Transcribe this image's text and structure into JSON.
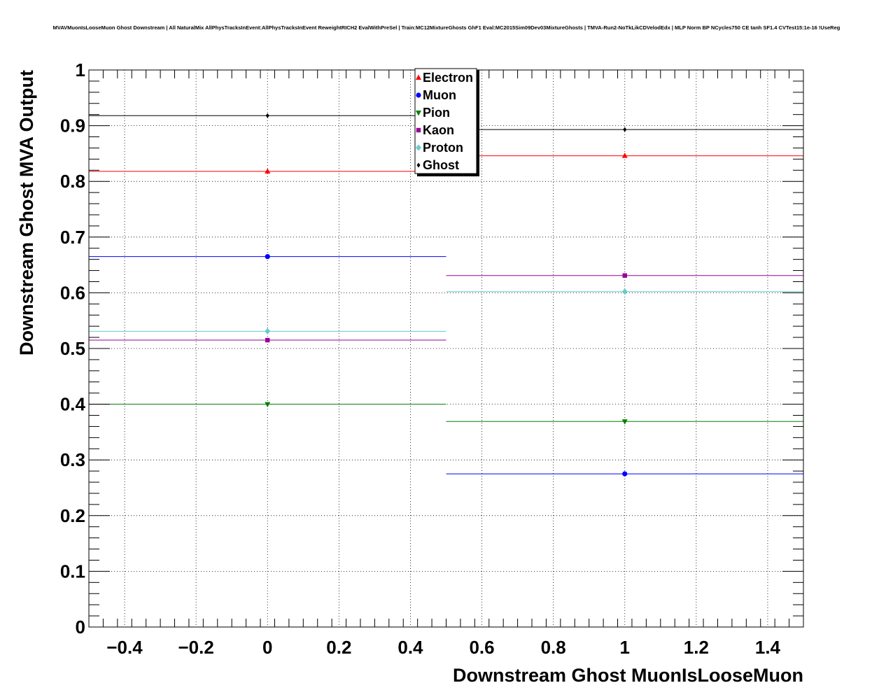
{
  "chart_data": {
    "type": "scatter",
    "title": "MVAVMuonIsLooseMuon Ghost Downstream | All NaturalMix AllPhysTracksInEvent:AllPhysTracksInEvent ReweightRICH2 EvalWithPreSel | Train:MC12MixtureGhosts GhF1 Eval:MC2015Sim09Dev03MixtureGhosts | TMVA-Run2-NoTkLikCDVelodEdx | MLP Norm BP NCycles750 CE tanh SF1.4 CVTest15:1e-16 !UseReg",
    "xlabel": "Downstream Ghost MuonIsLooseMuon",
    "ylabel": "Downstream Ghost MVA Output",
    "xlim": [
      -0.5,
      1.5
    ],
    "ylim": [
      0,
      1
    ],
    "grid": true,
    "legend_position": "top-center",
    "x_ticks": [
      {
        "value": -0.4,
        "label": "−0.4"
      },
      {
        "value": -0.2,
        "label": "−0.2"
      },
      {
        "value": 0,
        "label": "0"
      },
      {
        "value": 0.2,
        "label": "0.2"
      },
      {
        "value": 0.4,
        "label": "0.4"
      },
      {
        "value": 0.6,
        "label": "0.6"
      },
      {
        "value": 0.8,
        "label": "0.8"
      },
      {
        "value": 1,
        "label": "1"
      },
      {
        "value": 1.2,
        "label": "1.2"
      },
      {
        "value": 1.4,
        "label": "1.4"
      }
    ],
    "y_ticks": [
      {
        "value": 0,
        "label": "0"
      },
      {
        "value": 0.1,
        "label": "0.1"
      },
      {
        "value": 0.2,
        "label": "0.2"
      },
      {
        "value": 0.3,
        "label": "0.3"
      },
      {
        "value": 0.4,
        "label": "0.4"
      },
      {
        "value": 0.5,
        "label": "0.5"
      },
      {
        "value": 0.6,
        "label": "0.6"
      },
      {
        "value": 0.7,
        "label": "0.7"
      },
      {
        "value": 0.8,
        "label": "0.8"
      },
      {
        "value": 0.9,
        "label": "0.9"
      },
      {
        "value": 1,
        "label": "1"
      }
    ],
    "bins": [
      {
        "center": 0,
        "low": -0.5,
        "high": 0.5
      },
      {
        "center": 1,
        "low": 0.5,
        "high": 1.5
      }
    ],
    "series": [
      {
        "name": "Electron",
        "color": "#ff0000",
        "marker": "triangle-up",
        "values": [
          0.818,
          0.846
        ]
      },
      {
        "name": "Muon",
        "color": "#0000ff",
        "marker": "circle",
        "values": [
          0.665,
          0.275
        ]
      },
      {
        "name": "Pion",
        "color": "#008000",
        "marker": "triangle-down",
        "values": [
          0.4,
          0.369
        ]
      },
      {
        "name": "Kaon",
        "color": "#990099",
        "marker": "square",
        "values": [
          0.515,
          0.631
        ]
      },
      {
        "name": "Proton",
        "color": "#66cccc",
        "marker": "diamond",
        "values": [
          0.531,
          0.602
        ]
      },
      {
        "name": "Ghost",
        "color": "#000000",
        "marker": "diamond-small",
        "values": [
          0.918,
          0.893
        ]
      }
    ]
  }
}
